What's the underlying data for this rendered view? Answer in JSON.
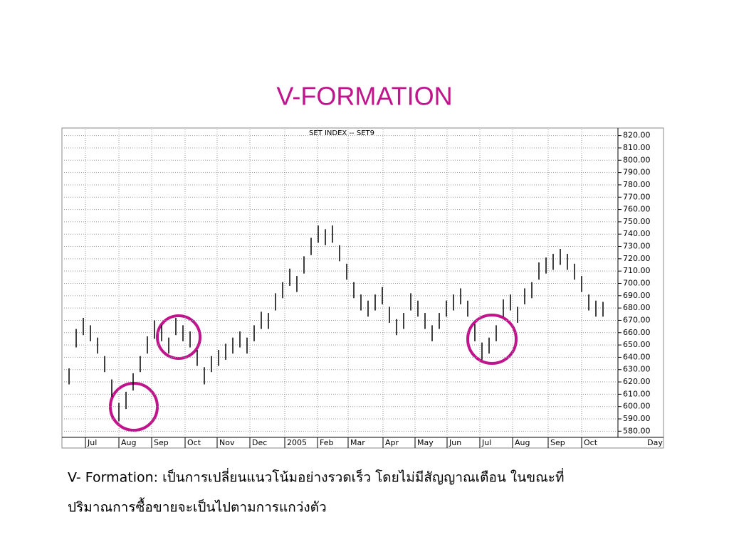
{
  "chart_data": {
    "type": "ohlc",
    "title": "V-FORMATION",
    "subtitle": "SET INDEX -- SET9",
    "x_label": "Day",
    "caption": [
      "V- Formation: เป็นการเปลี่ยนแนวโน้มอย่างรวดเร็ว โดยไม่มีสัญญาณเตือน ในขณะที่",
      "ปริมาณการซื้อขายจะเป็นไปตามการแกว่งตัว"
    ],
    "color": "#000000",
    "grid": true,
    "x": [
      0.7,
      1.7,
      2.7,
      3.7,
      4.7,
      5.7,
      6.7,
      7.7,
      8.7,
      9.7,
      10.7,
      11.7,
      12.7,
      13.7,
      14.7,
      15.7,
      16.7,
      17.7,
      18.7,
      19.7,
      20.7,
      21.7,
      22.7,
      23.7,
      24.7,
      25.7,
      26.7,
      27.7,
      28.7,
      29.7,
      30.7,
      31.7,
      32.7,
      33.7,
      34.7,
      35.7,
      36.7,
      37.7,
      38.7,
      39.7,
      40.7,
      41.7,
      42.7,
      43.7,
      44.7,
      45.7,
      46.7,
      47.7,
      48.7,
      49.7,
      50.7,
      51.7,
      52.7,
      53.7,
      54.7,
      55.7,
      56.7,
      57.7,
      58.7,
      59.7,
      60.7,
      61.7,
      62.7,
      63.7,
      64.7,
      65.7,
      66.7,
      67.7,
      68.7,
      69.7,
      70.7,
      71.7,
      72.7,
      73.7,
      74.7,
      75.7
    ],
    "high": [
      631,
      663,
      672,
      666,
      656,
      641,
      622,
      603,
      612,
      627,
      641,
      657,
      670,
      666,
      656,
      672,
      666,
      661,
      646,
      632,
      641,
      646,
      651,
      656,
      661,
      656,
      666,
      677,
      676,
      692,
      701,
      712,
      706,
      722,
      737,
      747,
      744,
      747,
      731,
      716,
      701,
      691,
      686,
      691,
      697,
      681,
      671,
      676,
      692,
      686,
      676,
      666,
      676,
      686,
      691,
      696,
      686,
      667,
      652,
      656,
      666,
      687,
      691,
      681,
      696,
      701,
      717,
      721,
      724,
      728,
      724,
      716,
      706,
      691,
      686,
      685
    ],
    "low": [
      618,
      648,
      658,
      653,
      643,
      628,
      608,
      588,
      598,
      613,
      628,
      643,
      655,
      653,
      643,
      658,
      653,
      648,
      633,
      618,
      628,
      633,
      638,
      643,
      648,
      643,
      653,
      663,
      663,
      678,
      688,
      698,
      693,
      708,
      723,
      733,
      731,
      733,
      718,
      703,
      688,
      678,
      673,
      678,
      683,
      668,
      658,
      663,
      678,
      673,
      663,
      653,
      663,
      673,
      678,
      683,
      673,
      653,
      638,
      643,
      653,
      673,
      678,
      668,
      683,
      688,
      703,
      708,
      711,
      715,
      711,
      703,
      693,
      678,
      673,
      673
    ],
    "xlim": [
      0,
      77.8
    ],
    "xticks": [
      {
        "value": 3,
        "label": "Jul"
      },
      {
        "value": 7.7,
        "label": "Aug"
      },
      {
        "value": 12.3,
        "label": "Sep"
      },
      {
        "value": 17,
        "label": "Oct"
      },
      {
        "value": 21.5,
        "label": "Nov"
      },
      {
        "value": 26.1,
        "label": "Dec"
      },
      {
        "value": 31,
        "label": "2005"
      },
      {
        "value": 35.6,
        "label": "Feb"
      },
      {
        "value": 39.9,
        "label": "Mar"
      },
      {
        "value": 44.8,
        "label": "Apr"
      },
      {
        "value": 49.3,
        "label": "May"
      },
      {
        "value": 53.8,
        "label": "Jun"
      },
      {
        "value": 58.4,
        "label": "Jul"
      },
      {
        "value": 63,
        "label": "Aug"
      },
      {
        "value": 68,
        "label": "Sep"
      },
      {
        "value": 72.7,
        "label": "Oct"
      }
    ],
    "ylim": [
      575,
      825
    ],
    "yticks": [
      {
        "value": 580,
        "label": "580.00"
      },
      {
        "value": 590,
        "label": "590.00"
      },
      {
        "value": 600,
        "label": "600.00"
      },
      {
        "value": 610,
        "label": "610.00"
      },
      {
        "value": 620,
        "label": "620.00"
      },
      {
        "value": 630,
        "label": "630.00"
      },
      {
        "value": 640,
        "label": "640.00"
      },
      {
        "value": 650,
        "label": "650.00"
      },
      {
        "value": 660,
        "label": "660.00"
      },
      {
        "value": 670,
        "label": "670.00"
      },
      {
        "value": 680,
        "label": "680.00"
      },
      {
        "value": 690,
        "label": "690.00"
      },
      {
        "value": 700,
        "label": "700.00"
      },
      {
        "value": 710,
        "label": "710.00"
      },
      {
        "value": 720,
        "label": "720.00"
      },
      {
        "value": 730,
        "label": "730.00"
      },
      {
        "value": 740,
        "label": "740.00"
      },
      {
        "value": 750,
        "label": "750.00"
      },
      {
        "value": 760,
        "label": "760.00"
      },
      {
        "value": 770,
        "label": "770.00"
      },
      {
        "value": 780,
        "label": "780.00"
      },
      {
        "value": 790,
        "label": "790.00"
      },
      {
        "value": 800,
        "label": "800.00"
      },
      {
        "value": 810,
        "label": "810.00"
      },
      {
        "value": 820,
        "label": "820.00"
      }
    ]
  }
}
